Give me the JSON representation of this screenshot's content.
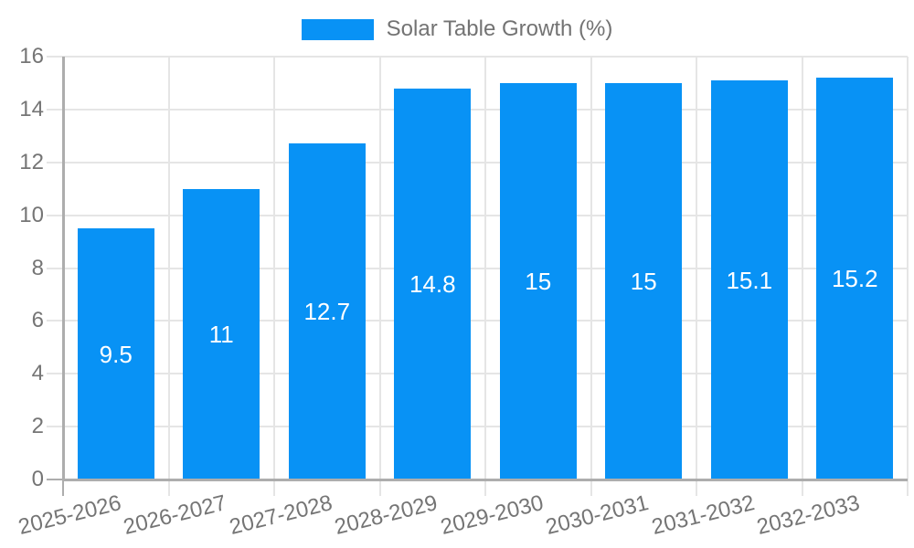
{
  "legend": {
    "label": "Solar Table Growth (%)"
  },
  "colors": {
    "bar": "#0892f5",
    "grid": "#e5e5e5",
    "axis": "#adadad",
    "tick_text": "#757575",
    "bar_label_text": "#ffffff",
    "background": "#ffffff"
  },
  "chart_data": {
    "type": "bar",
    "title": "Solar Table Growth (%)",
    "categories": [
      "2025-2026",
      "2026-2027",
      "2027-2028",
      "2028-2029",
      "2029-2030",
      "2030-2031",
      "2031-2032",
      "2032-2033"
    ],
    "values": [
      9.5,
      11,
      12.7,
      14.8,
      15,
      15,
      15.1,
      15.2
    ],
    "value_labels": [
      "9.5",
      "11",
      "12.7",
      "14.8",
      "15",
      "15",
      "15.1",
      "15.2"
    ],
    "series_name": "Solar Table Growth (%)",
    "xlabel": "",
    "ylabel": "",
    "ylim": [
      0,
      16
    ],
    "ytick_step": 2,
    "ytick_labels": [
      "0",
      "2",
      "4",
      "6",
      "8",
      "10",
      "12",
      "14",
      "16"
    ],
    "grid": true,
    "legend_position": "top",
    "bar_label_position": "center",
    "x_label_rotation_deg": -14
  }
}
